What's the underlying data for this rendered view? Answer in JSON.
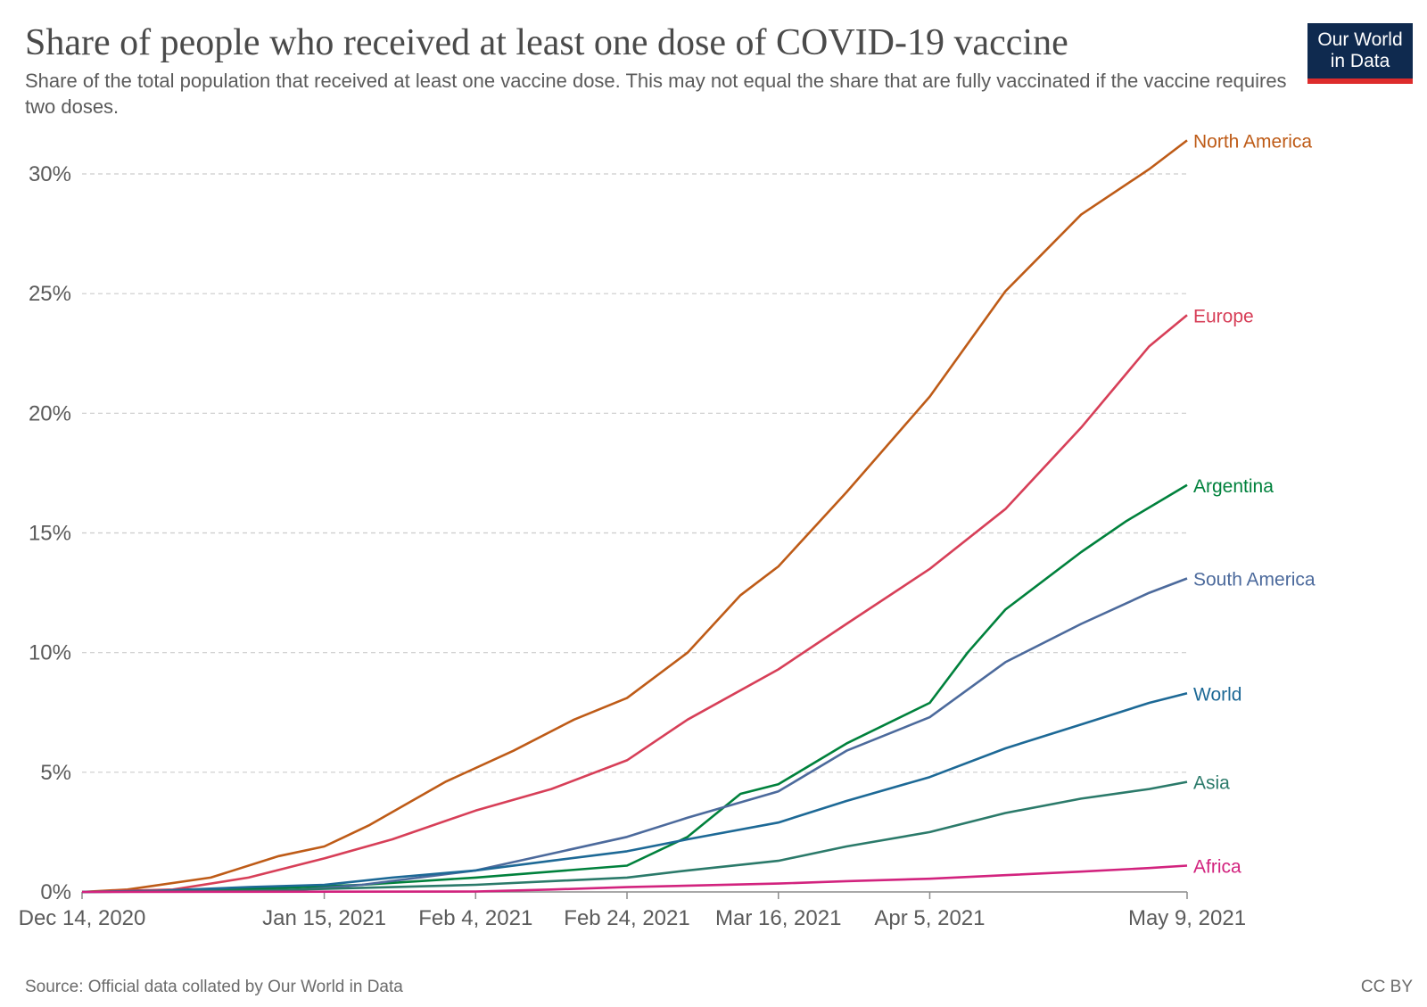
{
  "header": {
    "title": "Share of people who received at least one dose of COVID-19 vaccine",
    "subtitle": "Share of the total population that received at least one vaccine dose. This may not equal the share that are fully vaccinated if the vaccine requires two doses.",
    "logo_line1": "Our World",
    "logo_line2": "in Data"
  },
  "footer": {
    "source": "Source: Official data collated by Our World in Data",
    "license": "CC BY"
  },
  "colors": {
    "grid": "#cccccc",
    "axis": "#8c8c8c",
    "logo_bg": "#0f2a4f",
    "logo_accent": "#dd2c2c"
  },
  "chart_data": {
    "type": "line",
    "x_start": "Dec 14, 2020",
    "x_end": "May 9, 2021",
    "ylim": [
      0,
      31.5
    ],
    "y_ticks": [
      {
        "value": 0,
        "label": "0%"
      },
      {
        "value": 5,
        "label": "5%"
      },
      {
        "value": 10,
        "label": "10%"
      },
      {
        "value": 15,
        "label": "15%"
      },
      {
        "value": 20,
        "label": "20%"
      },
      {
        "value": 25,
        "label": "25%"
      },
      {
        "value": 30,
        "label": "30%"
      }
    ],
    "x_ticks": [
      "Dec 14, 2020",
      "Jan 15, 2021",
      "Feb 4, 2021",
      "Feb 24, 2021",
      "Mar 16, 2021",
      "Apr 5, 2021",
      "May 9, 2021"
    ],
    "grid": true,
    "legend": "end-of-line labels",
    "series": [
      {
        "name": "North America",
        "color": "#be5b17",
        "points": [
          [
            "Dec 14, 2020",
            0
          ],
          [
            "Dec 20, 2020",
            0.1
          ],
          [
            "Dec 31, 2020",
            0.6
          ],
          [
            "Jan 9, 2021",
            1.5
          ],
          [
            "Jan 15, 2021",
            1.9
          ],
          [
            "Jan 21, 2021",
            2.8
          ],
          [
            "Jan 31, 2021",
            4.6
          ],
          [
            "Feb 9, 2021",
            5.9
          ],
          [
            "Feb 17, 2021",
            7.2
          ],
          [
            "Feb 24, 2021",
            8.1
          ],
          [
            "Mar 4, 2021",
            10.0
          ],
          [
            "Mar 11, 2021",
            12.4
          ],
          [
            "Mar 16, 2021",
            13.6
          ],
          [
            "Mar 25, 2021",
            16.7
          ],
          [
            "Apr 5, 2021",
            20.7
          ],
          [
            "Apr 15, 2021",
            25.1
          ],
          [
            "Apr 25, 2021",
            28.3
          ],
          [
            "May 4, 2021",
            30.2
          ],
          [
            "May 9, 2021",
            31.4
          ]
        ]
      },
      {
        "name": "Europe",
        "color": "#d73f58",
        "points": [
          [
            "Dec 14, 2020",
            0
          ],
          [
            "Dec 26, 2020",
            0.1
          ],
          [
            "Jan 5, 2021",
            0.6
          ],
          [
            "Jan 15, 2021",
            1.4
          ],
          [
            "Jan 24, 2021",
            2.2
          ],
          [
            "Feb 4, 2021",
            3.4
          ],
          [
            "Feb 14, 2021",
            4.3
          ],
          [
            "Feb 24, 2021",
            5.5
          ],
          [
            "Mar 4, 2021",
            7.2
          ],
          [
            "Mar 16, 2021",
            9.3
          ],
          [
            "Mar 25, 2021",
            11.2
          ],
          [
            "Apr 5, 2021",
            13.5
          ],
          [
            "Apr 15, 2021",
            16.0
          ],
          [
            "Apr 25, 2021",
            19.4
          ],
          [
            "May 4, 2021",
            22.8
          ],
          [
            "May 9, 2021",
            24.1
          ]
        ]
      },
      {
        "name": "Argentina",
        "color": "#00813c",
        "points": [
          [
            "Dec 14, 2020",
            0
          ],
          [
            "Dec 30, 2020",
            0.05
          ],
          [
            "Jan 20, 2021",
            0.3
          ],
          [
            "Feb 4, 2021",
            0.6
          ],
          [
            "Feb 24, 2021",
            1.1
          ],
          [
            "Mar 4, 2021",
            2.3
          ],
          [
            "Mar 11, 2021",
            4.1
          ],
          [
            "Mar 16, 2021",
            4.5
          ],
          [
            "Mar 25, 2021",
            6.2
          ],
          [
            "Apr 5, 2021",
            7.9
          ],
          [
            "Apr 10, 2021",
            10.0
          ],
          [
            "Apr 15, 2021",
            11.8
          ],
          [
            "Apr 25, 2021",
            14.2
          ],
          [
            "May 1, 2021",
            15.5
          ],
          [
            "May 9, 2021",
            17.0
          ]
        ]
      },
      {
        "name": "South America",
        "color": "#4c6a9c",
        "points": [
          [
            "Dec 14, 2020",
            0
          ],
          [
            "Jan 10, 2021",
            0.05
          ],
          [
            "Jan 20, 2021",
            0.3
          ],
          [
            "Feb 4, 2021",
            0.9
          ],
          [
            "Feb 14, 2021",
            1.6
          ],
          [
            "Feb 24, 2021",
            2.3
          ],
          [
            "Mar 4, 2021",
            3.1
          ],
          [
            "Mar 16, 2021",
            4.2
          ],
          [
            "Mar 25, 2021",
            5.9
          ],
          [
            "Apr 5, 2021",
            7.3
          ],
          [
            "Apr 15, 2021",
            9.6
          ],
          [
            "Apr 25, 2021",
            11.2
          ],
          [
            "May 4, 2021",
            12.5
          ],
          [
            "May 9, 2021",
            13.1
          ]
        ]
      },
      {
        "name": "World",
        "color": "#1d6996",
        "points": [
          [
            "Dec 14, 2020",
            0
          ],
          [
            "Dec 24, 2020",
            0.05
          ],
          [
            "Jan 5, 2021",
            0.2
          ],
          [
            "Jan 15, 2021",
            0.3
          ],
          [
            "Jan 24, 2021",
            0.6
          ],
          [
            "Feb 4, 2021",
            0.9
          ],
          [
            "Feb 14, 2021",
            1.3
          ],
          [
            "Feb 24, 2021",
            1.7
          ],
          [
            "Mar 4, 2021",
            2.2
          ],
          [
            "Mar 16, 2021",
            2.9
          ],
          [
            "Mar 25, 2021",
            3.8
          ],
          [
            "Apr 5, 2021",
            4.8
          ],
          [
            "Apr 15, 2021",
            6.0
          ],
          [
            "Apr 25, 2021",
            7.0
          ],
          [
            "May 4, 2021",
            7.9
          ],
          [
            "May 9, 2021",
            8.3
          ]
        ]
      },
      {
        "name": "Asia",
        "color": "#2b7a6a",
        "points": [
          [
            "Dec 14, 2020",
            0
          ],
          [
            "Jan 5, 2021",
            0.05
          ],
          [
            "Jan 24, 2021",
            0.2
          ],
          [
            "Feb 4, 2021",
            0.3
          ],
          [
            "Feb 24, 2021",
            0.6
          ],
          [
            "Mar 4, 2021",
            0.9
          ],
          [
            "Mar 16, 2021",
            1.3
          ],
          [
            "Mar 25, 2021",
            1.9
          ],
          [
            "Apr 5, 2021",
            2.5
          ],
          [
            "Apr 15, 2021",
            3.3
          ],
          [
            "Apr 25, 2021",
            3.9
          ],
          [
            "May 4, 2021",
            4.3
          ],
          [
            "May 9, 2021",
            4.6
          ]
        ]
      },
      {
        "name": "Africa",
        "color": "#d2237e",
        "points": [
          [
            "Dec 14, 2020",
            0
          ],
          [
            "Feb 4, 2021",
            0.02
          ],
          [
            "Feb 14, 2021",
            0.1
          ],
          [
            "Feb 24, 2021",
            0.2
          ],
          [
            "Mar 16, 2021",
            0.35
          ],
          [
            "Mar 25, 2021",
            0.45
          ],
          [
            "Apr 5, 2021",
            0.55
          ],
          [
            "Apr 15, 2021",
            0.7
          ],
          [
            "Apr 25, 2021",
            0.85
          ],
          [
            "May 4, 2021",
            1.0
          ],
          [
            "May 9, 2021",
            1.1
          ]
        ]
      }
    ]
  }
}
